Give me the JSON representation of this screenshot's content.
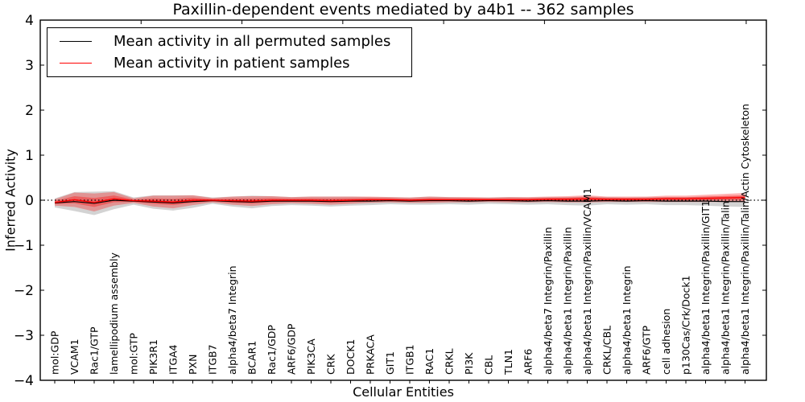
{
  "chart_data": {
    "type": "line",
    "title": "Paxillin-dependent events mediated by a4b1 -- 362 samples",
    "xlabel": "Cellular Entities",
    "ylabel": "Inferred Activity",
    "ylim": [
      -4,
      4
    ],
    "yticks": [
      4,
      3,
      2,
      1,
      0,
      -1,
      -2,
      -3,
      -4
    ],
    "x_major_ticks": [
      5,
      10,
      15,
      20,
      25,
      30,
      35
    ],
    "grid": false,
    "legend_position": "upper left",
    "zero_reference_line": true,
    "categories": [
      "mol:GDP",
      "VCAM1",
      "Rac1/GTP",
      "lamellipodium assembly",
      "mol:GTP",
      "PIK3R1",
      "ITGA4",
      "PXN",
      "ITGB7",
      "alpha4/beta7 Integrin",
      "BCAR1",
      "Rac1/GDP",
      "ARF6/GDP",
      "PIK3CA",
      "CRK",
      "DOCK1",
      "PRKACA",
      "GIT1",
      "ITGB1",
      "RAC1",
      "CRKL",
      "PI3K",
      "CBL",
      "TLN1",
      "ARF6",
      "alpha4/beta7 Integrin/Paxillin",
      "alpha4/beta1 Integrin/Paxillin",
      "alpha4/beta1 Integrin/Paxillin/VCAM1",
      "CRKL/CBL",
      "alpha4/beta1 Integrin",
      "ARF6/GTP",
      "cell adhesion",
      "p130Cas/Crk/Dock1",
      "alpha4/beta1 Integrin/Paxillin/GIT1",
      "alpha4/beta1 Integrin/Paxillin/Talin",
      "alpha4/beta1 Integrin/Paxillin/Talin/Actin Cytoskeleton"
    ],
    "series": [
      {
        "name": "Mean activity in all permuted samples",
        "color": "#000000",
        "band_color": "#808080",
        "values": [
          -0.06,
          -0.03,
          -0.07,
          0.0,
          -0.02,
          -0.04,
          -0.06,
          -0.03,
          -0.01,
          -0.03,
          -0.04,
          -0.02,
          -0.02,
          -0.02,
          -0.03,
          -0.02,
          -0.02,
          -0.01,
          -0.02,
          -0.01,
          -0.01,
          -0.02,
          -0.01,
          -0.01,
          -0.02,
          -0.01,
          -0.02,
          -0.02,
          -0.01,
          -0.02,
          -0.01,
          -0.02,
          -0.02,
          -0.02,
          -0.03,
          -0.03
        ],
        "band_halfwidth": [
          0.1,
          0.21,
          0.26,
          0.2,
          0.08,
          0.15,
          0.17,
          0.14,
          0.07,
          0.11,
          0.14,
          0.11,
          0.09,
          0.1,
          0.11,
          0.1,
          0.09,
          0.08,
          0.08,
          0.09,
          0.08,
          0.08,
          0.07,
          0.08,
          0.08,
          0.08,
          0.09,
          0.1,
          0.08,
          0.08,
          0.08,
          0.09,
          0.09,
          0.1,
          0.11,
          0.12
        ]
      },
      {
        "name": "Mean activity in patient samples",
        "color": "#ff0000",
        "band_color": "#ff0000",
        "values": [
          -0.05,
          0.01,
          -0.05,
          0.03,
          -0.01,
          -0.02,
          -0.04,
          0.0,
          0.0,
          -0.01,
          -0.02,
          0.0,
          0.0,
          0.0,
          -0.01,
          0.0,
          0.01,
          0.01,
          0.0,
          0.01,
          0.01,
          0.01,
          0.01,
          0.01,
          0.01,
          0.02,
          0.02,
          0.03,
          0.02,
          0.02,
          0.02,
          0.03,
          0.03,
          0.04,
          0.05,
          0.06
        ],
        "band_halfwidth": [
          0.07,
          0.16,
          0.2,
          0.15,
          0.05,
          0.12,
          0.14,
          0.11,
          0.05,
          0.09,
          0.11,
          0.09,
          0.07,
          0.08,
          0.09,
          0.08,
          0.07,
          0.06,
          0.06,
          0.07,
          0.06,
          0.06,
          0.05,
          0.06,
          0.06,
          0.06,
          0.07,
          0.08,
          0.06,
          0.06,
          0.06,
          0.07,
          0.07,
          0.08,
          0.09,
          0.1
        ]
      }
    ]
  }
}
